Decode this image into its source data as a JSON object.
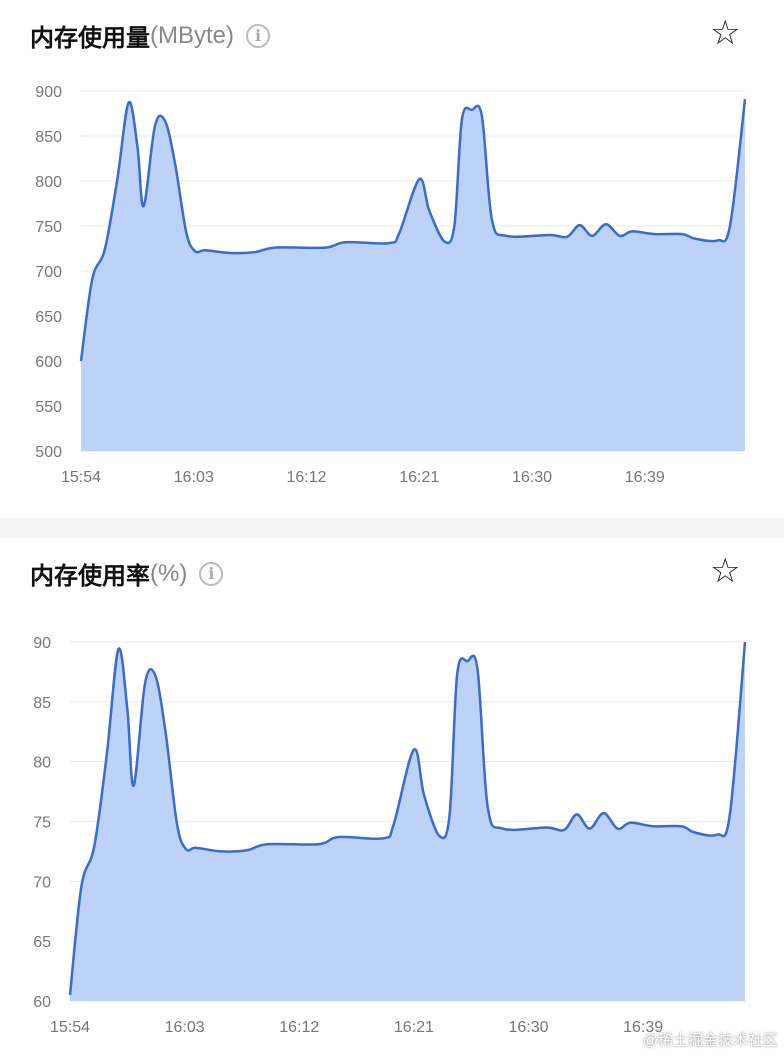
{
  "watermark": "@稀土掘金技术社区",
  "colors": {
    "line": "#3a6bd1",
    "fill": "#bcd2f7",
    "grid": "#e8e8e8",
    "tick": "#777777"
  },
  "icons": {
    "info": "info-circle-icon",
    "favorite": "star-outline-icon"
  },
  "chart_data": [
    {
      "type": "area",
      "title": "内存使用量",
      "unit": "(MByte)",
      "ylim": [
        500,
        900
      ],
      "yticks": [
        "900",
        "850",
        "800",
        "750",
        "700",
        "650",
        "600",
        "550",
        "500"
      ],
      "xticks": [
        "15:54",
        "16:03",
        "16:12",
        "16:21",
        "16:30",
        "16:39"
      ],
      "xlim": [
        "15:54",
        "16:47"
      ],
      "grid": true,
      "x": [
        "15:54:00",
        "15:54:54",
        "15:55:54",
        "15:56:54",
        "15:57:48",
        "15:58:30",
        "15:59:00",
        "15:59:54",
        "16:00:42",
        "16:01:30",
        "16:02:24",
        "16:03:06",
        "16:03:54",
        "16:05:54",
        "16:07:54",
        "16:09:30",
        "16:13:30",
        "16:15:06",
        "16:18:36",
        "16:19:24",
        "16:21:00",
        "16:21:48",
        "16:23:00",
        "16:23:48",
        "16:24:24",
        "16:25:12",
        "16:26:00",
        "16:26:48",
        "16:28:00",
        "16:31:24",
        "16:32:48",
        "16:33:48",
        "16:34:48",
        "16:35:54",
        "16:37:00",
        "16:38:00",
        "16:39:48",
        "16:42:00",
        "16:43:00",
        "16:44:48",
        "16:45:48",
        "16:47:00"
      ],
      "values": [
        600,
        691,
        724,
        802,
        887,
        839,
        772,
        861,
        867,
        820,
        743,
        722,
        723,
        720,
        721,
        726,
        726,
        732,
        731,
        742,
        802,
        767,
        733,
        750,
        868,
        879,
        872,
        757,
        739,
        740,
        738,
        751,
        739,
        752,
        739,
        744,
        741,
        741,
        736,
        734,
        750,
        891
      ]
    },
    {
      "type": "area",
      "title": "内存使用率",
      "unit": "(%)",
      "ylim": [
        60,
        90
      ],
      "yticks": [
        "90",
        "85",
        "80",
        "75",
        "70",
        "65",
        "60"
      ],
      "xticks": [
        "15:54",
        "16:03",
        "16:12",
        "16:21",
        "16:30",
        "16:39"
      ],
      "xlim": [
        "15:54",
        "16:47"
      ],
      "grid": true,
      "x": [
        "15:54:00",
        "15:54:54",
        "15:55:54",
        "15:56:54",
        "15:57:48",
        "15:58:30",
        "15:59:00",
        "15:59:54",
        "16:00:42",
        "16:01:30",
        "16:02:24",
        "16:03:06",
        "16:03:54",
        "16:05:54",
        "16:07:54",
        "16:09:30",
        "16:13:30",
        "16:15:06",
        "16:18:36",
        "16:19:24",
        "16:21:00",
        "16:21:48",
        "16:23:00",
        "16:23:48",
        "16:24:24",
        "16:25:12",
        "16:26:00",
        "16:26:48",
        "16:28:00",
        "16:31:24",
        "16:32:48",
        "16:33:48",
        "16:34:48",
        "16:35:54",
        "16:37:00",
        "16:38:00",
        "16:39:48",
        "16:42:00",
        "16:43:00",
        "16:44:48",
        "16:45:48",
        "16:47:00"
      ],
      "values": [
        60.5,
        69.6,
        72.9,
        80.7,
        89.4,
        84.4,
        78.0,
        86.6,
        87.2,
        82.5,
        74.8,
        72.7,
        72.8,
        72.5,
        72.6,
        73.1,
        73.1,
        73.7,
        73.6,
        74.7,
        81.0,
        77.2,
        73.8,
        75.5,
        87.3,
        88.4,
        87.7,
        76.2,
        74.4,
        74.5,
        74.3,
        75.6,
        74.4,
        75.7,
        74.4,
        74.9,
        74.6,
        74.6,
        74.1,
        73.9,
        75.5,
        90.0
      ]
    }
  ]
}
